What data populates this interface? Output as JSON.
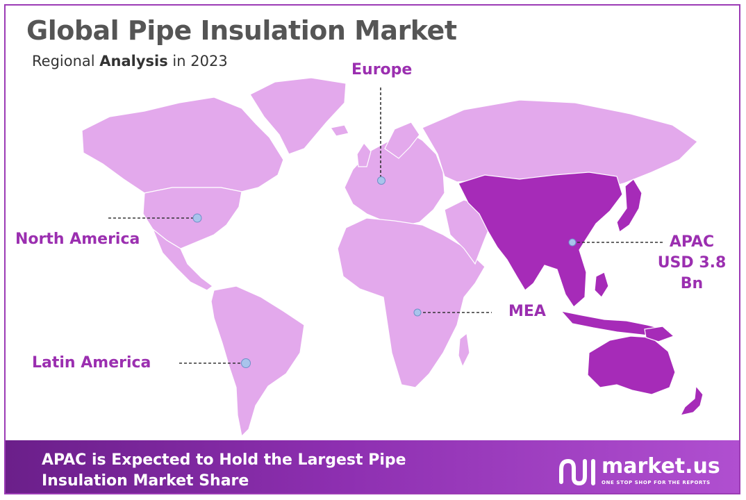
{
  "header": {
    "title": "Global Pipe Insulation Market",
    "subtitle_prefix": "Regional ",
    "subtitle_bold": "Analysis",
    "subtitle_suffix": " in 2023"
  },
  "regions": {
    "europe": "Europe",
    "north_america": "North America",
    "latin_america": "Latin America",
    "mea": "MEA",
    "apac": "APAC",
    "apac_value": "USD 3.8 Bn"
  },
  "banner": {
    "text": "APAC is Expected to Hold the Largest Pipe Insulation Market Share"
  },
  "brand": {
    "name": "market.us",
    "tagline": "ONE STOP SHOP FOR THE REPORTS"
  },
  "colors": {
    "land_light": "#e3a9ec",
    "land_highlight": "#a62bb8",
    "label": "#9b2fb0",
    "marker": "#a9c4ec",
    "banner_start": "#6b1f8a",
    "banner_end": "#b04fd0"
  }
}
